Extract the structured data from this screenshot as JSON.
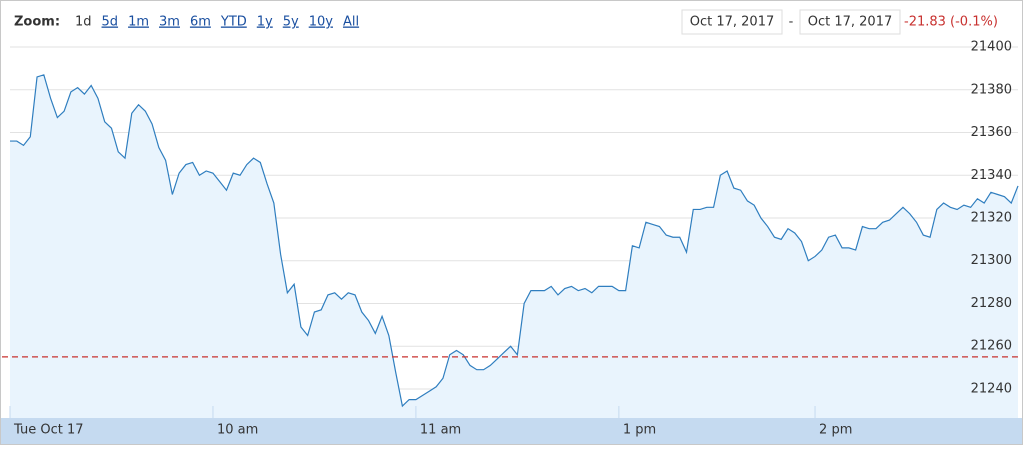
{
  "toolbar": {
    "zoom_label": "Zoom:",
    "zoom_options": [
      "1d",
      "5d",
      "1m",
      "3m",
      "6m",
      "YTD",
      "1y",
      "5y",
      "10y",
      "All"
    ],
    "date_from": "Oct 17, 2017",
    "separator": "-",
    "date_to": "Oct 17, 2017",
    "change": "-21.83 (-0.1%)"
  },
  "chart_data": {
    "type": "area",
    "values": [
      21356,
      21356,
      21354,
      21358,
      21386,
      21387,
      21376,
      21367,
      21370,
      21379,
      21381,
      21378,
      21382,
      21376,
      21365,
      21362,
      21351,
      21348,
      21369,
      21373,
      21370,
      21364,
      21353,
      21347,
      21331,
      21341,
      21345,
      21346,
      21340,
      21342,
      21341,
      21337,
      21333,
      21341,
      21340,
      21345,
      21348,
      21346,
      21336,
      21327,
      21303,
      21285,
      21289,
      21269,
      21265,
      21276,
      21277,
      21284,
      21285,
      21282,
      21285,
      21284,
      21276,
      21272,
      21266,
      21274,
      21265,
      21248,
      21232,
      21235,
      21235,
      21237,
      21239,
      21241,
      21245,
      21256,
      21258,
      21256,
      21251,
      21249,
      21249,
      21251,
      21254,
      21257,
      21260,
      21256,
      21280,
      21286,
      21286,
      21286,
      21288,
      21284,
      21287,
      21288,
      21286,
      21287,
      21285,
      21288,
      21288,
      21288,
      21286,
      21286,
      21307,
      21306,
      21318,
      21317,
      21316,
      21312,
      21311,
      21311,
      21304,
      21324,
      21324,
      21325,
      21325,
      21340,
      21342,
      21334,
      21333,
      21328,
      21326,
      21320,
      21316,
      21311,
      21310,
      21315,
      21313,
      21309,
      21300,
      21302,
      21305,
      21311,
      21312,
      21306,
      21306,
      21305,
      21316,
      21315,
      21315,
      21318,
      21319,
      21322,
      21325,
      21322,
      21318,
      21312,
      21311,
      21324,
      21327,
      21325,
      21324,
      21326,
      21325,
      21329,
      21327,
      21332,
      21331,
      21330,
      21327,
      21335
    ],
    "color": "#2f7ebf",
    "fill": "#e9f4fd",
    "xlim": [
      0,
      149
    ],
    "xticks": [
      {
        "value": 0,
        "label": "Tue Oct 17"
      },
      {
        "value": 30,
        "label": "10 am"
      },
      {
        "value": 60,
        "label": "11 am"
      },
      {
        "value": 90,
        "label": "1 pm"
      },
      {
        "value": 119,
        "label": "2 pm"
      }
    ],
    "ylim": [
      21226.4,
      21403.3
    ],
    "yticks": [
      21240,
      21260,
      21280,
      21300,
      21320,
      21340,
      21360,
      21380,
      21400
    ],
    "grid": true,
    "previous_close": 21255,
    "previous_close_color": "#c8312f"
  }
}
